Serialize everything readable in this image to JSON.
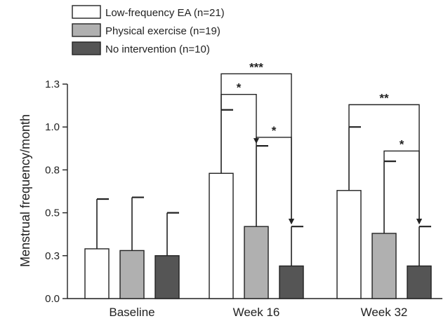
{
  "chart_data": {
    "type": "bar",
    "title": "",
    "xlabel": "",
    "ylabel": "Menstrual frequency/month",
    "ylim": [
      0,
      1.3
    ],
    "yticks": [
      {
        "value": 0.0,
        "label": "0.0"
      },
      {
        "value": 0.25,
        "label": "0.3"
      },
      {
        "value": 0.5,
        "label": "0.5"
      },
      {
        "value": 0.75,
        "label": "0.8"
      },
      {
        "value": 1.0,
        "label": "1.0"
      },
      {
        "value": 1.25,
        "label": "1.3"
      }
    ],
    "categories": [
      "Baseline",
      "Week 16",
      "Week 32"
    ],
    "legend_position": "top-left",
    "grid": false,
    "series": [
      {
        "name": "Low-frequency EA (n=21)",
        "color": "#ffffff",
        "values": [
          0.29,
          0.73,
          0.63
        ],
        "errors": [
          0.29,
          0.37,
          0.37
        ]
      },
      {
        "name": "Physical exercise (n=19)",
        "color": "#b0b0b0",
        "values": [
          0.28,
          0.42,
          0.38
        ],
        "errors": [
          0.31,
          0.47,
          0.42
        ]
      },
      {
        "name": "No intervention (n=10)",
        "color": "#555555",
        "values": [
          0.25,
          0.19,
          0.19
        ],
        "errors": [
          0.25,
          0.23,
          0.23
        ]
      }
    ],
    "significance": [
      {
        "label": "*",
        "category": 1,
        "from": 0,
        "to": 1,
        "level": 1.19
      },
      {
        "label": "***",
        "category": 1,
        "from": 0,
        "to": 2,
        "level": 1.31
      },
      {
        "label": "*",
        "category": 1,
        "from": 1,
        "to": 2,
        "level": 0.94
      },
      {
        "label": "**",
        "category": 2,
        "from": 0,
        "to": 2,
        "level": 1.13
      },
      {
        "label": "*",
        "category": 2,
        "from": 1,
        "to": 2,
        "level": 0.86
      }
    ]
  }
}
